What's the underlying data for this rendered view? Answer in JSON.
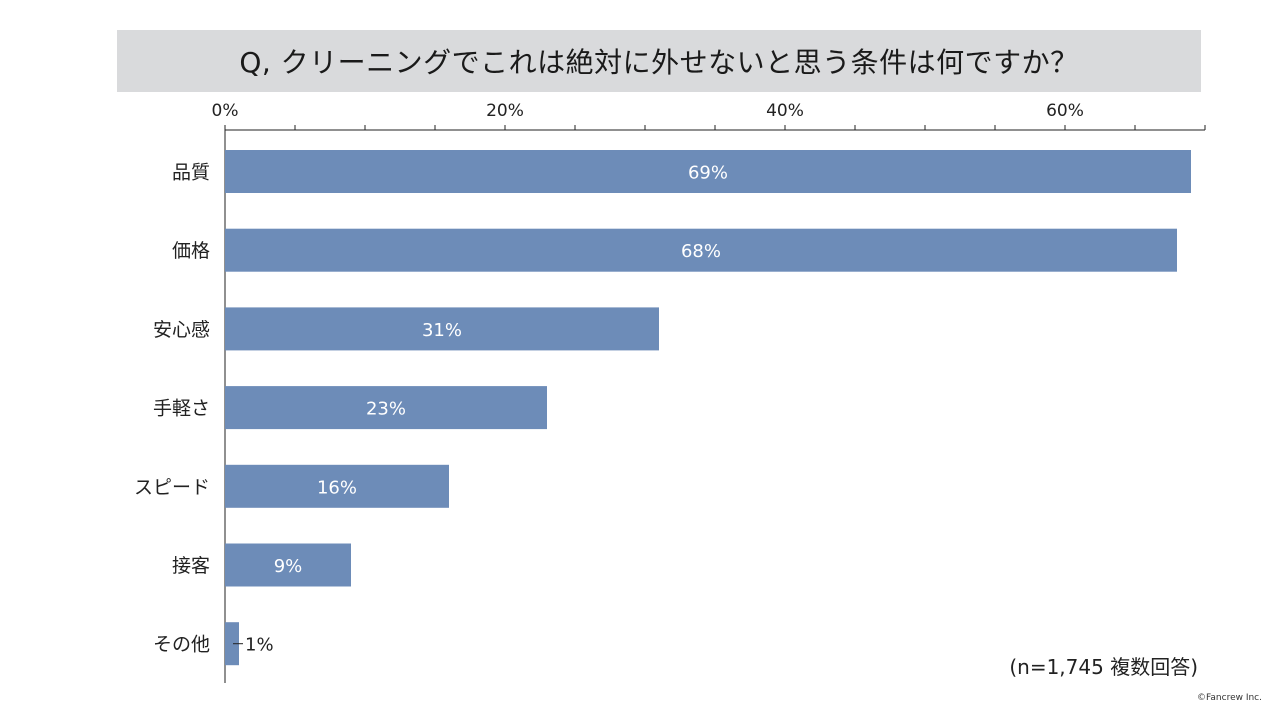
{
  "title": "Q, クリーニングでこれは絶対に外せないと思う条件は何ですか？",
  "note": "(n=1,745 複数回答)",
  "copyright": "©Fancrew Inc.",
  "colors": {
    "bar": "#6d8cb8",
    "title_bg": "#d9dadc",
    "label_inside": "#ffffff",
    "label_outside": "#222222"
  },
  "chart_data": {
    "type": "bar",
    "orientation": "horizontal",
    "title": "Q, クリーニングでこれは絶対に外せないと思う条件は何ですか？",
    "xlabel": "",
    "ylabel": "",
    "xlim": [
      0,
      70
    ],
    "x_ticks": [
      0,
      20,
      40,
      60
    ],
    "x_tick_labels": [
      "0%",
      "20%",
      "40%",
      "60%"
    ],
    "x_axis_position": "top",
    "grid": false,
    "categories": [
      "品質",
      "価格",
      "安心感",
      "手軽さ",
      "スピード",
      "接客",
      "その他"
    ],
    "values": [
      69,
      68,
      31,
      23,
      16,
      9,
      1
    ],
    "value_labels": [
      "69%",
      "68%",
      "31%",
      "23%",
      "16%",
      "9%",
      "1%"
    ],
    "unit": "%"
  }
}
